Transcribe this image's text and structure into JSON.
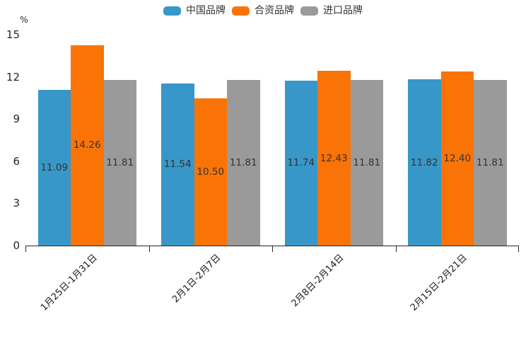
{
  "chart_data": {
    "type": "bar",
    "title": "",
    "unit_label": "%",
    "categories": [
      "1月25日-1月31日",
      "2月1日-2月7日",
      "2月8日-2月14日",
      "2月15日-2月21日"
    ],
    "series": [
      {
        "name": "中国品牌",
        "color": "#3797C9",
        "values": [
          11.09,
          11.54,
          11.74,
          11.82
        ]
      },
      {
        "name": "合资品牌",
        "color": "#FA7306",
        "values": [
          14.26,
          10.5,
          12.43,
          12.4
        ]
      },
      {
        "name": "进口品牌",
        "color": "#9A9A9A",
        "values": [
          11.81,
          11.81,
          11.81,
          11.81
        ]
      }
    ],
    "value_labels": [
      [
        "11.09",
        "11.54",
        "11.74",
        "11.82"
      ],
      [
        "14.26",
        "10.50",
        "12.43",
        "12.40"
      ],
      [
        "11.81",
        "11.81",
        "11.81",
        "11.81"
      ]
    ],
    "ylim": [
      0,
      15
    ],
    "yticks": [
      0,
      3,
      6,
      9,
      12,
      15
    ],
    "legend_position": "top-center",
    "grid": false,
    "value_label_color": "#333333",
    "axis_color": "#262626"
  }
}
